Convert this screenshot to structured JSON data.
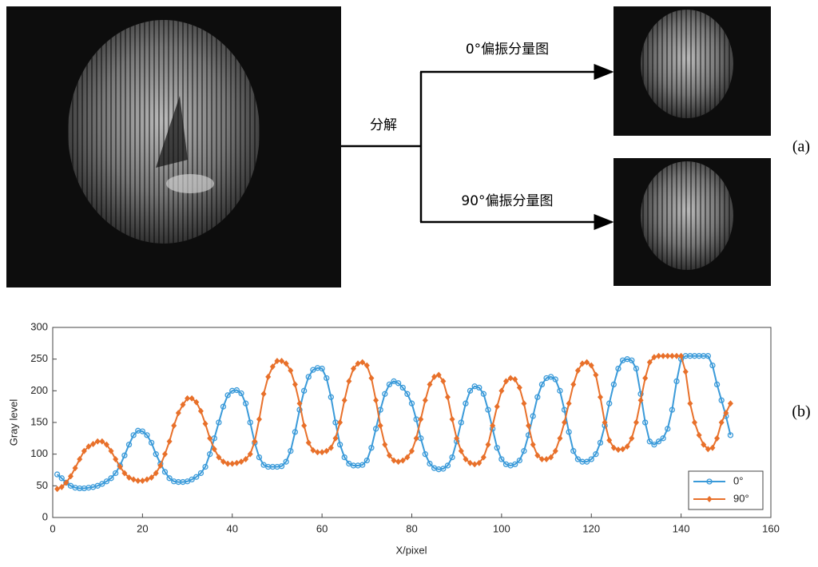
{
  "diagram": {
    "decompose": "分解",
    "branch_top": "0°偏振分量图",
    "branch_bottom": "90°偏振分量图"
  },
  "panel_labels": [
    "(a)",
    "(b)"
  ],
  "chart_data": {
    "type": "line",
    "xlabel": "X/pixel",
    "ylabel": "Gray level",
    "xlim": [
      0,
      160
    ],
    "xticks": [
      0,
      20,
      40,
      60,
      80,
      100,
      120,
      140,
      160
    ],
    "ylim": [
      0,
      300
    ],
    "yticks": [
      0,
      50,
      100,
      150,
      200,
      250,
      300
    ],
    "grid": false,
    "legend": "lower right",
    "x": [
      1,
      2,
      3,
      4,
      5,
      6,
      7,
      8,
      9,
      10,
      11,
      12,
      13,
      14,
      15,
      16,
      17,
      18,
      19,
      20,
      21,
      22,
      23,
      24,
      25,
      26,
      27,
      28,
      29,
      30,
      31,
      32,
      33,
      34,
      35,
      36,
      37,
      38,
      39,
      40,
      41,
      42,
      43,
      44,
      45,
      46,
      47,
      48,
      49,
      50,
      51,
      52,
      53,
      54,
      55,
      56,
      57,
      58,
      59,
      60,
      61,
      62,
      63,
      64,
      65,
      66,
      67,
      68,
      69,
      70,
      71,
      72,
      73,
      74,
      75,
      76,
      77,
      78,
      79,
      80,
      81,
      82,
      83,
      84,
      85,
      86,
      87,
      88,
      89,
      90,
      91,
      92,
      93,
      94,
      95,
      96,
      97,
      98,
      99,
      100,
      101,
      102,
      103,
      104,
      105,
      106,
      107,
      108,
      109,
      110,
      111,
      112,
      113,
      114,
      115,
      116,
      117,
      118,
      119,
      120,
      121,
      122,
      123,
      124,
      125,
      126,
      127,
      128,
      129,
      130,
      131,
      132,
      133,
      134,
      135,
      136,
      137,
      138,
      139,
      140,
      141,
      142,
      143,
      144,
      145,
      146,
      147,
      148,
      149,
      150,
      151
    ],
    "series": [
      {
        "name": "0°",
        "color": "#3a9ad9",
        "marker": "circle",
        "values": [
          68,
          62,
          55,
          50,
          47,
          46,
          46,
          47,
          48,
          50,
          53,
          57,
          62,
          70,
          82,
          98,
          115,
          130,
          137,
          136,
          130,
          118,
          100,
          85,
          72,
          62,
          57,
          56,
          56,
          57,
          60,
          64,
          70,
          80,
          100,
          125,
          150,
          175,
          193,
          200,
          201,
          196,
          180,
          150,
          118,
          95,
          83,
          80,
          80,
          80,
          81,
          88,
          105,
          135,
          170,
          200,
          222,
          233,
          236,
          235,
          220,
          190,
          150,
          115,
          95,
          85,
          82,
          82,
          83,
          90,
          110,
          140,
          170,
          195,
          210,
          215,
          212,
          205,
          195,
          180,
          155,
          125,
          100,
          85,
          78,
          76,
          77,
          82,
          95,
          120,
          150,
          180,
          200,
          207,
          205,
          195,
          170,
          140,
          110,
          92,
          84,
          82,
          84,
          90,
          105,
          130,
          160,
          190,
          210,
          220,
          222,
          218,
          200,
          170,
          135,
          105,
          92,
          88,
          88,
          92,
          100,
          118,
          145,
          180,
          210,
          235,
          248,
          250,
          248,
          235,
          195,
          150,
          120,
          115,
          120,
          125,
          140,
          170,
          215,
          250,
          255,
          255,
          255,
          255,
          255,
          255,
          240,
          210,
          185,
          160,
          130
        ]
      },
      {
        "name": "90°",
        "color": "#e8702a",
        "marker": "diamond",
        "values": [
          45,
          48,
          55,
          65,
          78,
          92,
          105,
          112,
          116,
          120,
          120,
          115,
          105,
          92,
          80,
          70,
          63,
          60,
          58,
          58,
          60,
          63,
          70,
          82,
          100,
          120,
          145,
          165,
          178,
          188,
          188,
          182,
          168,
          148,
          125,
          108,
          95,
          88,
          85,
          85,
          86,
          88,
          92,
          100,
          120,
          155,
          195,
          222,
          238,
          247,
          247,
          243,
          232,
          210,
          180,
          145,
          118,
          106,
          103,
          103,
          105,
          110,
          125,
          150,
          185,
          215,
          235,
          243,
          245,
          240,
          220,
          185,
          145,
          115,
          98,
          90,
          88,
          90,
          95,
          105,
          125,
          155,
          185,
          210,
          222,
          225,
          215,
          190,
          155,
          125,
          105,
          92,
          86,
          84,
          86,
          95,
          115,
          145,
          175,
          200,
          215,
          220,
          218,
          205,
          180,
          145,
          115,
          98,
          92,
          92,
          95,
          105,
          125,
          150,
          180,
          210,
          232,
          243,
          245,
          240,
          225,
          190,
          150,
          122,
          110,
          107,
          108,
          112,
          125,
          150,
          185,
          220,
          245,
          253,
          255,
          255,
          255,
          255,
          255,
          255,
          230,
          180,
          150,
          130,
          115,
          108,
          110,
          125,
          150,
          165,
          180
        ]
      }
    ]
  }
}
